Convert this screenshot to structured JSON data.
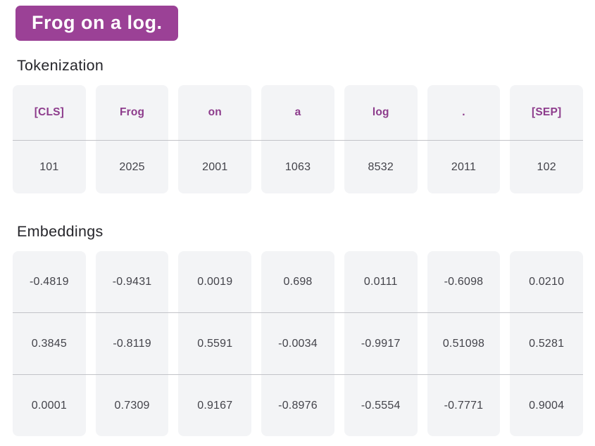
{
  "page": {
    "title_badge": "Frog on a log.",
    "accent_color": "#9b4196",
    "cell_background": "#f3f4f6",
    "divider_color": "#c2c3c7"
  },
  "tokenization": {
    "heading": "Tokenization",
    "tokens": [
      "[CLS]",
      "Frog",
      "on",
      "a",
      "log",
      ".",
      "[SEP]"
    ],
    "ids": [
      "101",
      "2025",
      "2001",
      "1063",
      "8532",
      "2011",
      "102"
    ]
  },
  "embeddings": {
    "heading": "Embeddings",
    "rows": [
      [
        "-0.4819",
        "-0.9431",
        "0.0019",
        "0.698",
        "0.0111",
        "-0.6098",
        "0.0210"
      ],
      [
        "0.3845",
        "-0.8119",
        "0.5591",
        "-0.0034",
        "-0.9917",
        "0.51098",
        "0.5281"
      ],
      [
        "0.0001",
        "0.7309",
        "0.9167",
        "-0.8976",
        "-0.5554",
        "-0.7771",
        "0.9004"
      ]
    ]
  }
}
